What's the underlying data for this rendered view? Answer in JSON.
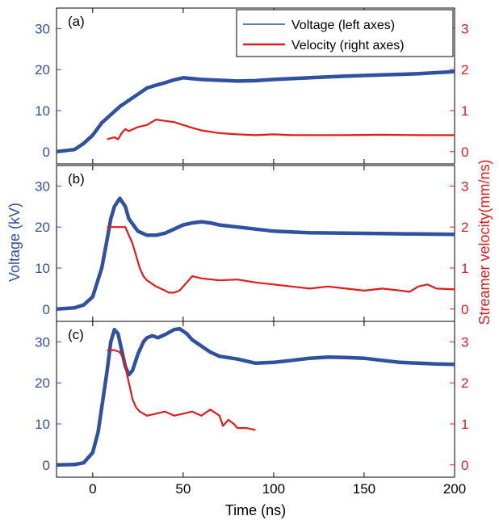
{
  "chart_data": {
    "type": "line",
    "xlabel": "Time (ns)",
    "ylabel_left": "Voltage (kV)",
    "ylabel_right": "Streamer velocity(mm/ns)",
    "xlim": [
      -20,
      200
    ],
    "x_ticks": [
      "0",
      "50",
      "100",
      "150",
      "200"
    ],
    "ylim_left": [
      -3,
      35
    ],
    "ylim_right": [
      -0.3,
      3.5
    ],
    "left_ticks": [
      "0",
      "10",
      "20",
      "30"
    ],
    "right_ticks": [
      "0",
      "1",
      "2",
      "3"
    ],
    "colors": {
      "voltage": "#3050a0",
      "velocity": "#e01b1b"
    },
    "legend": {
      "placement": "top-right",
      "entries": [
        "Voltage (left axes)",
        "Velocity (right axes)"
      ]
    },
    "panels": [
      {
        "label": "(a)",
        "show_legend": true,
        "voltage": {
          "x": [
            -20,
            -10,
            -5,
            0,
            5,
            10,
            15,
            20,
            25,
            30,
            35,
            40,
            45,
            50,
            55,
            60,
            70,
            80,
            90,
            100,
            120,
            140,
            160,
            180,
            200
          ],
          "y": [
            0,
            0.5,
            2,
            4,
            7,
            9,
            11,
            12.5,
            14,
            15.5,
            16.2,
            16.8,
            17.5,
            18,
            17.8,
            17.6,
            17.4,
            17.2,
            17.3,
            17.6,
            18,
            18.4,
            18.7,
            19,
            19.5
          ]
        },
        "velocity": {
          "x": [
            8,
            12,
            14,
            16,
            18,
            20,
            25,
            30,
            35,
            40,
            45,
            50,
            55,
            60,
            70,
            80,
            90,
            100,
            110,
            120,
            140,
            160,
            180,
            200
          ],
          "y": [
            0.3,
            0.35,
            0.3,
            0.45,
            0.55,
            0.5,
            0.6,
            0.65,
            0.78,
            0.75,
            0.72,
            0.65,
            0.58,
            0.52,
            0.45,
            0.42,
            0.4,
            0.42,
            0.4,
            0.4,
            0.4,
            0.41,
            0.4,
            0.4
          ]
        }
      },
      {
        "label": "(b)",
        "show_legend": false,
        "voltage": {
          "x": [
            -20,
            -10,
            -5,
            0,
            5,
            8,
            10,
            12,
            15,
            18,
            20,
            25,
            30,
            35,
            40,
            45,
            50,
            55,
            60,
            65,
            70,
            80,
            90,
            100,
            120,
            140,
            160,
            180,
            200
          ],
          "y": [
            0,
            0.3,
            1,
            3,
            10,
            17,
            22,
            25,
            27,
            25,
            22,
            19,
            18,
            18,
            18.5,
            19.5,
            20.5,
            21,
            21.3,
            21,
            20.5,
            20,
            19.5,
            19,
            18.6,
            18.5,
            18.4,
            18.3,
            18.2
          ]
        },
        "velocity": {
          "x": [
            8,
            12,
            15,
            18,
            20,
            22,
            24,
            26,
            28,
            30,
            35,
            40,
            42,
            45,
            48,
            50,
            55,
            60,
            70,
            80,
            90,
            100,
            110,
            120,
            130,
            140,
            150,
            160,
            170,
            175,
            180,
            185,
            190,
            200
          ],
          "y": [
            2.0,
            2.0,
            2.0,
            2.0,
            1.8,
            1.6,
            1.3,
            1.0,
            0.8,
            0.7,
            0.55,
            0.45,
            0.4,
            0.4,
            0.45,
            0.55,
            0.8,
            0.75,
            0.7,
            0.72,
            0.65,
            0.6,
            0.55,
            0.5,
            0.55,
            0.5,
            0.45,
            0.5,
            0.45,
            0.42,
            0.55,
            0.6,
            0.5,
            0.48
          ]
        }
      },
      {
        "label": "(c)",
        "show_legend": false,
        "voltage": {
          "x": [
            -20,
            -10,
            -5,
            0,
            3,
            5,
            8,
            10,
            12,
            14,
            16,
            18,
            20,
            22,
            25,
            28,
            30,
            33,
            36,
            40,
            45,
            48,
            52,
            55,
            60,
            65,
            70,
            80,
            90,
            100,
            110,
            120,
            130,
            140,
            150,
            160,
            170,
            180,
            190,
            200
          ],
          "y": [
            0,
            0.1,
            0.5,
            3,
            8,
            14,
            23,
            30,
            33,
            32,
            28,
            24,
            22,
            23,
            27,
            30,
            31,
            31.5,
            31,
            31.8,
            33,
            33.2,
            32,
            30.5,
            29,
            27.5,
            26.5,
            25.8,
            24.8,
            25,
            25.5,
            26,
            26.3,
            26.2,
            26,
            25.5,
            25,
            24.8,
            24.6,
            24.5
          ]
        },
        "velocity": {
          "x": [
            8,
            12,
            15,
            17,
            18,
            20,
            21,
            22,
            24,
            26,
            28,
            30,
            35,
            40,
            45,
            50,
            55,
            60,
            65,
            70,
            72,
            75,
            78,
            80,
            85,
            90
          ],
          "y": [
            2.8,
            2.8,
            2.75,
            2.6,
            2.4,
            2.0,
            1.8,
            1.6,
            1.4,
            1.3,
            1.25,
            1.2,
            1.25,
            1.3,
            1.2,
            1.25,
            1.3,
            1.2,
            1.35,
            1.2,
            0.95,
            1.1,
            1.0,
            0.9,
            0.9,
            0.85
          ]
        }
      }
    ]
  }
}
